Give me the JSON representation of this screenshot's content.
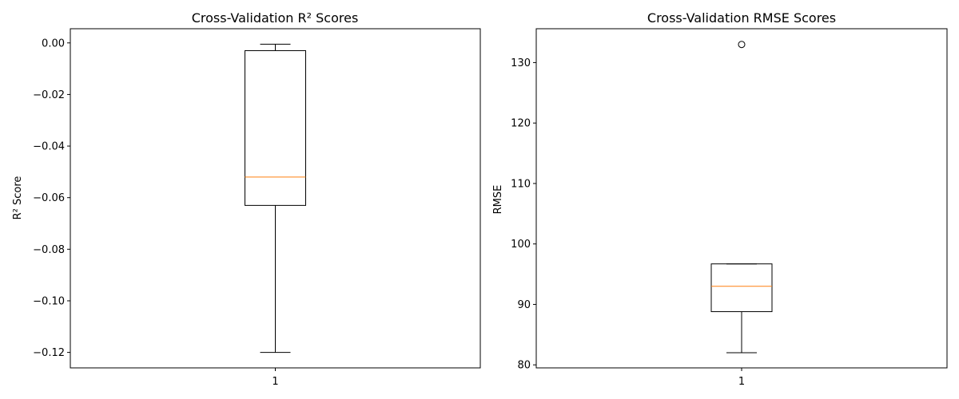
{
  "chart_data": [
    {
      "type": "box",
      "title": "Cross-Validation R² Scores",
      "xlabel": "",
      "ylabel": "R² Score",
      "categories": [
        "1"
      ],
      "ylim": [
        -0.126,
        0.0055
      ],
      "yticks": [
        "0.00",
        "-0.02",
        "-0.04",
        "-0.06",
        "-0.08",
        "-0.10",
        "-0.12"
      ],
      "ytick_values": [
        0.0,
        -0.02,
        -0.04,
        -0.06,
        -0.08,
        -0.1,
        -0.12
      ],
      "boxes": [
        {
          "label": "1",
          "whisker_low": -0.12,
          "q1": -0.063,
          "median": -0.052,
          "q3": -0.003,
          "whisker_high": -0.0005,
          "outliers": []
        }
      ],
      "grid": false,
      "colors": {
        "box": "#000000",
        "median": "#ff7f0e"
      }
    },
    {
      "type": "box",
      "title": "Cross-Validation RMSE Scores",
      "xlabel": "",
      "ylabel": "RMSE",
      "categories": [
        "1"
      ],
      "ylim": [
        79.5,
        135.6
      ],
      "yticks": [
        "80",
        "90",
        "100",
        "110",
        "120",
        "130"
      ],
      "ytick_values": [
        80,
        90,
        100,
        110,
        120,
        130
      ],
      "boxes": [
        {
          "label": "1",
          "whisker_low": 82.0,
          "q1": 88.8,
          "median": 93.0,
          "q3": 96.7,
          "whisker_high": 96.7,
          "outliers": [
            133.0
          ]
        }
      ],
      "grid": false,
      "colors": {
        "box": "#000000",
        "median": "#ff7f0e"
      }
    }
  ]
}
